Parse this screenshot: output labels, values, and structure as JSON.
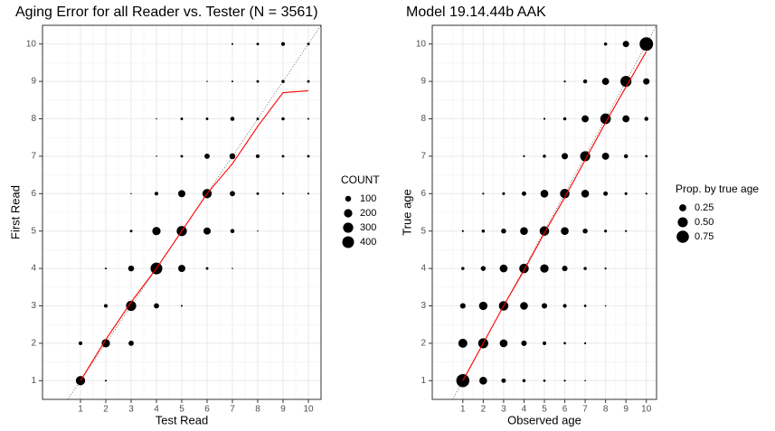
{
  "chart_data": [
    {
      "type": "scatter",
      "title": "Aging Error for all Reader vs. Tester (N = 3561)",
      "x_label": "Test Read",
      "y_label": "First Read",
      "xlim": [
        -0.5,
        10.5
      ],
      "ylim": [
        0.5,
        10.5
      ],
      "xticks": [
        1,
        2,
        3,
        4,
        5,
        6,
        7,
        8,
        9,
        10
      ],
      "yticks": [
        1,
        2,
        3,
        4,
        5,
        6,
        7,
        8,
        9,
        10
      ],
      "grid": true,
      "color": "#000000",
      "identity_line": true,
      "x": [
        1,
        2,
        1,
        2,
        3,
        2,
        3,
        4,
        5,
        2,
        3,
        4,
        5,
        6,
        7,
        3,
        4,
        5,
        6,
        7,
        8,
        3,
        4,
        5,
        6,
        7,
        8,
        9,
        10,
        4,
        5,
        6,
        7,
        8,
        9,
        10,
        4,
        5,
        6,
        7,
        8,
        9,
        10,
        6,
        7,
        8,
        9,
        10,
        7,
        8,
        9,
        10
      ],
      "values": [
        1,
        1,
        2,
        2,
        2,
        3,
        3,
        3,
        3,
        4,
        4,
        4,
        4,
        4,
        4,
        5,
        5,
        5,
        5,
        5,
        5,
        6,
        6,
        6,
        6,
        6,
        6,
        6,
        6,
        7,
        7,
        7,
        7,
        7,
        7,
        7,
        8,
        8,
        8,
        8,
        8,
        8,
        8,
        9,
        9,
        9,
        9,
        9,
        10,
        10,
        10,
        10
      ],
      "sizes": [
        250,
        10,
        40,
        200,
        80,
        40,
        300,
        80,
        10,
        10,
        100,
        400,
        150,
        20,
        5,
        20,
        200,
        300,
        150,
        50,
        5,
        5,
        40,
        150,
        250,
        80,
        20,
        10,
        10,
        5,
        20,
        80,
        100,
        40,
        20,
        20,
        5,
        20,
        20,
        50,
        20,
        30,
        10,
        5,
        10,
        20,
        30,
        20,
        10,
        20,
        40,
        20
      ],
      "line": {
        "color": "#ff0000",
        "x": [
          1,
          2,
          3,
          4,
          5,
          6,
          7,
          8,
          9,
          10
        ],
        "values": [
          1.0,
          2.1,
          3.1,
          4.0,
          5.0,
          6.0,
          6.8,
          7.8,
          8.7,
          8.75
        ]
      },
      "size_legend": {
        "title": "COUNT",
        "values": [
          100,
          200,
          300,
          400
        ]
      }
    },
    {
      "type": "scatter",
      "title": "Model 19.14.44b AAK",
      "x_label": "Observed age",
      "y_label": "True age",
      "xlim": [
        -0.5,
        10.5
      ],
      "ylim": [
        0.5,
        10.5
      ],
      "xticks": [
        1,
        2,
        3,
        4,
        5,
        6,
        7,
        8,
        9,
        10
      ],
      "yticks": [
        1,
        2,
        3,
        4,
        5,
        6,
        7,
        8,
        9,
        10
      ],
      "grid": true,
      "color": "#000000",
      "identity_line": true,
      "x": [
        1,
        2,
        3,
        4,
        5,
        6,
        7,
        1,
        2,
        3,
        4,
        5,
        6,
        7,
        1,
        2,
        3,
        4,
        5,
        6,
        7,
        8,
        1,
        2,
        3,
        4,
        5,
        6,
        7,
        8,
        1,
        2,
        3,
        4,
        5,
        6,
        7,
        8,
        9,
        2,
        3,
        4,
        5,
        6,
        7,
        8,
        9,
        10,
        4,
        5,
        6,
        7,
        8,
        9,
        10,
        5,
        6,
        7,
        8,
        9,
        10,
        6,
        7,
        8,
        9,
        10,
        8,
        9,
        10
      ],
      "values": [
        1,
        1,
        1,
        1,
        1,
        1,
        1,
        2,
        2,
        2,
        2,
        2,
        2,
        2,
        3,
        3,
        3,
        3,
        3,
        3,
        3,
        3,
        4,
        4,
        4,
        4,
        4,
        4,
        4,
        4,
        5,
        5,
        5,
        5,
        5,
        5,
        5,
        5,
        5,
        6,
        6,
        6,
        6,
        6,
        6,
        6,
        6,
        6,
        7,
        7,
        7,
        7,
        7,
        7,
        7,
        8,
        8,
        8,
        8,
        8,
        8,
        9,
        9,
        9,
        9,
        9,
        10,
        10,
        10
      ],
      "sizes": [
        0.85,
        0.3,
        0.1,
        0.05,
        0.03,
        0.02,
        0.01,
        0.4,
        0.5,
        0.3,
        0.15,
        0.07,
        0.03,
        0.02,
        0.15,
        0.35,
        0.45,
        0.3,
        0.15,
        0.07,
        0.03,
        0.01,
        0.05,
        0.12,
        0.3,
        0.45,
        0.35,
        0.15,
        0.05,
        0.02,
        0.02,
        0.05,
        0.12,
        0.3,
        0.45,
        0.3,
        0.12,
        0.04,
        0.02,
        0.02,
        0.04,
        0.1,
        0.3,
        0.45,
        0.3,
        0.1,
        0.04,
        0.02,
        0.02,
        0.05,
        0.2,
        0.5,
        0.25,
        0.08,
        0.03,
        0.02,
        0.05,
        0.25,
        0.55,
        0.25,
        0.08,
        0.02,
        0.08,
        0.25,
        0.6,
        0.2,
        0.05,
        0.2,
        0.9
      ],
      "line": {
        "color": "#ff0000",
        "x": [
          1,
          2,
          3,
          4,
          5,
          6,
          7,
          8,
          9,
          10
        ],
        "values": [
          1.0,
          2.0,
          3.0,
          3.95,
          4.95,
          5.9,
          6.9,
          7.9,
          8.85,
          9.8
        ]
      },
      "size_legend": {
        "title": "Prop. by true age",
        "values": [
          0.25,
          {
            "value": 0.5,
            "label": "0.50"
          },
          0.75
        ]
      }
    }
  ]
}
